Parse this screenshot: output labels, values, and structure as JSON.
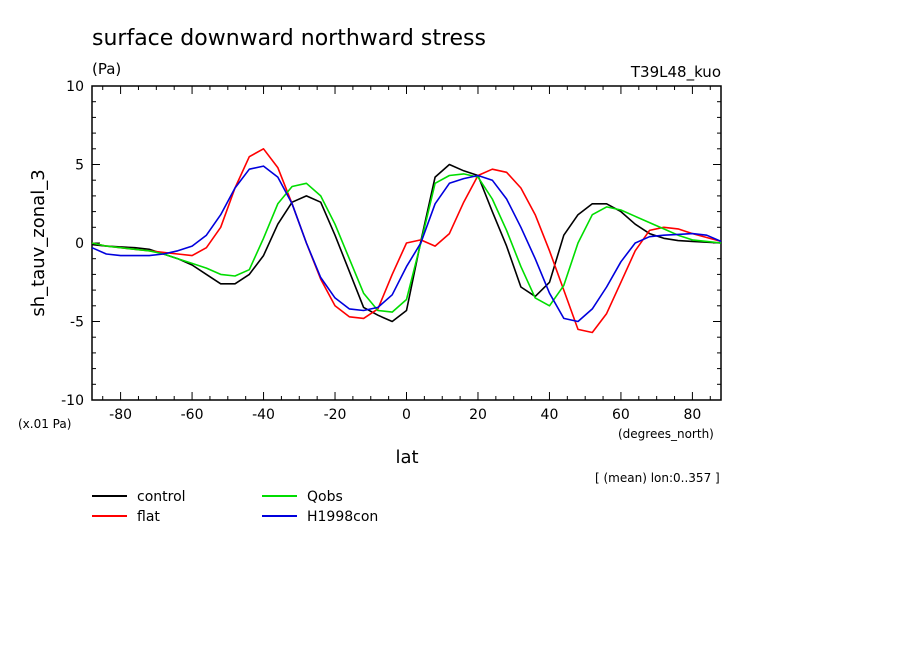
{
  "header": {
    "title": "surface downward northward stress",
    "units": "(Pa)",
    "run": "T39L48_kuo",
    "scale_note": "(x.01 Pa)",
    "x_units": "(degrees_north)",
    "mean_note": "[ (mean) lon:0..357 ]"
  },
  "chart_data": {
    "type": "line",
    "xlabel": "lat",
    "ylabel": "sh_tauv_zonal_3",
    "xlim": [
      -88,
      88
    ],
    "ylim": [
      -10,
      10
    ],
    "xticks": [
      -80,
      -60,
      -40,
      -20,
      0,
      20,
      40,
      60,
      80
    ],
    "xtick_labels": [
      "-80",
      "-60",
      "-40",
      "-20",
      "0",
      "20",
      "40",
      "60",
      "80"
    ],
    "yticks": [
      -10,
      -5,
      0,
      5,
      10
    ],
    "ytick_labels": [
      "-10",
      "-5",
      "0",
      "5",
      "10"
    ],
    "x": [
      -88,
      -84,
      -80,
      -76,
      -72,
      -68,
      -64,
      -60,
      -56,
      -52,
      -48,
      -44,
      -40,
      -36,
      -32,
      -28,
      -24,
      -20,
      -16,
      -12,
      -8,
      -4,
      0,
      4,
      8,
      12,
      16,
      20,
      24,
      28,
      32,
      36,
      40,
      44,
      48,
      52,
      56,
      60,
      64,
      68,
      72,
      76,
      80,
      84,
      88
    ],
    "series": [
      {
        "name": "control",
        "color": "#000000",
        "values": [
          -0.1,
          -0.2,
          -0.25,
          -0.3,
          -0.4,
          -0.7,
          -1.0,
          -1.4,
          -2.0,
          -2.6,
          -2.6,
          -2.0,
          -0.8,
          1.2,
          2.6,
          3.0,
          2.6,
          0.5,
          -1.8,
          -4.1,
          -4.6,
          -5.0,
          -4.3,
          0.1,
          4.2,
          5.0,
          4.6,
          4.3,
          2.0,
          -0.2,
          -2.8,
          -3.4,
          -2.5,
          0.5,
          1.8,
          2.5,
          2.5,
          2.0,
          1.2,
          0.6,
          0.3,
          0.15,
          0.1,
          0.05,
          0.0
        ]
      },
      {
        "name": "flat",
        "color": "#ff0000",
        "values": [
          0.0,
          -0.2,
          -0.3,
          -0.4,
          -0.5,
          -0.6,
          -0.7,
          -0.8,
          -0.3,
          1.0,
          3.5,
          5.5,
          6.0,
          4.8,
          2.5,
          0.0,
          -2.3,
          -4.0,
          -4.7,
          -4.8,
          -4.2,
          -2.0,
          0.0,
          0.2,
          -0.2,
          0.6,
          2.6,
          4.3,
          4.7,
          4.5,
          3.5,
          1.8,
          -0.5,
          -3.0,
          -5.5,
          -5.7,
          -4.5,
          -2.5,
          -0.5,
          0.8,
          1.0,
          0.9,
          0.6,
          0.35,
          0.1
        ]
      },
      {
        "name": "Qobs",
        "color": "#00dd00",
        "values": [
          0.0,
          -0.2,
          -0.3,
          -0.4,
          -0.5,
          -0.7,
          -1.0,
          -1.3,
          -1.6,
          -2.0,
          -2.1,
          -1.7,
          0.3,
          2.5,
          3.6,
          3.8,
          3.0,
          1.2,
          -1.0,
          -3.2,
          -4.3,
          -4.4,
          -3.6,
          0.0,
          3.8,
          4.3,
          4.4,
          4.2,
          2.8,
          0.8,
          -1.5,
          -3.5,
          -4.0,
          -2.7,
          0.0,
          1.8,
          2.3,
          2.1,
          1.7,
          1.3,
          0.9,
          0.5,
          0.2,
          0.1,
          0.0
        ]
      },
      {
        "name": "H1998con",
        "color": "#0000dd",
        "values": [
          -0.3,
          -0.7,
          -0.8,
          -0.8,
          -0.8,
          -0.7,
          -0.5,
          -0.2,
          0.5,
          1.8,
          3.5,
          4.7,
          4.9,
          4.2,
          2.5,
          0.0,
          -2.2,
          -3.5,
          -4.2,
          -4.3,
          -4.1,
          -3.3,
          -1.5,
          0.0,
          2.5,
          3.8,
          4.1,
          4.3,
          4.0,
          2.8,
          1.0,
          -1.0,
          -3.2,
          -4.8,
          -5.0,
          -4.2,
          -2.8,
          -1.2,
          0.0,
          0.4,
          0.5,
          0.55,
          0.6,
          0.5,
          0.1
        ]
      }
    ],
    "grid": false,
    "legend_position": "bottom-left"
  }
}
